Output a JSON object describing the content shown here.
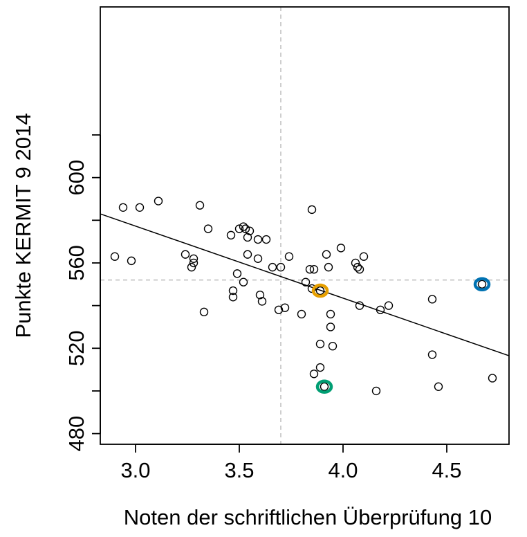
{
  "chart_data": {
    "type": "scatter",
    "xlabel": "Noten der schriftlichen Überprüfung 10",
    "ylabel": "Punkte KERMIT 9 2014",
    "xlim": [
      2.83,
      4.8
    ],
    "ylim": [
      475,
      680
    ],
    "x_ticks": [
      "3.0",
      "3.5",
      "4.0",
      "4.5"
    ],
    "x_tick_values": [
      3.0,
      3.5,
      4.0,
      4.5
    ],
    "y_ticks": [
      "480",
      "520",
      "560",
      "600"
    ],
    "y_tick_values": [
      480,
      520,
      560,
      600
    ],
    "grid": false,
    "reference_lines": {
      "x_mean": 3.7,
      "y_mean": 552
    },
    "regression_line": {
      "x": [
        2.83,
        4.8
      ],
      "y": [
        583,
        516.5
      ]
    },
    "points": [
      {
        "x": 2.9,
        "y": 563
      },
      {
        "x": 2.94,
        "y": 586
      },
      {
        "x": 2.98,
        "y": 561
      },
      {
        "x": 3.02,
        "y": 586
      },
      {
        "x": 3.11,
        "y": 589
      },
      {
        "x": 3.24,
        "y": 564
      },
      {
        "x": 3.28,
        "y": 562
      },
      {
        "x": 3.28,
        "y": 560
      },
      {
        "x": 3.27,
        "y": 558
      },
      {
        "x": 3.31,
        "y": 587
      },
      {
        "x": 3.33,
        "y": 537
      },
      {
        "x": 3.35,
        "y": 576
      },
      {
        "x": 3.46,
        "y": 573
      },
      {
        "x": 3.47,
        "y": 547
      },
      {
        "x": 3.47,
        "y": 544
      },
      {
        "x": 3.49,
        "y": 555
      },
      {
        "x": 3.5,
        "y": 576
      },
      {
        "x": 3.52,
        "y": 577
      },
      {
        "x": 3.53,
        "y": 576
      },
      {
        "x": 3.55,
        "y": 575
      },
      {
        "x": 3.54,
        "y": 572
      },
      {
        "x": 3.54,
        "y": 564
      },
      {
        "x": 3.52,
        "y": 551
      },
      {
        "x": 3.59,
        "y": 571
      },
      {
        "x": 3.59,
        "y": 562
      },
      {
        "x": 3.6,
        "y": 545
      },
      {
        "x": 3.61,
        "y": 542
      },
      {
        "x": 3.63,
        "y": 571
      },
      {
        "x": 3.66,
        "y": 558
      },
      {
        "x": 3.7,
        "y": 558
      },
      {
        "x": 3.69,
        "y": 538
      },
      {
        "x": 3.72,
        "y": 539
      },
      {
        "x": 3.74,
        "y": 563
      },
      {
        "x": 3.8,
        "y": 536
      },
      {
        "x": 3.82,
        "y": 551
      },
      {
        "x": 3.84,
        "y": 557
      },
      {
        "x": 3.86,
        "y": 557
      },
      {
        "x": 3.85,
        "y": 548
      },
      {
        "x": 3.85,
        "y": 585
      },
      {
        "x": 3.89,
        "y": 547
      },
      {
        "x": 3.89,
        "y": 522
      },
      {
        "x": 3.89,
        "y": 511
      },
      {
        "x": 3.92,
        "y": 564
      },
      {
        "x": 3.93,
        "y": 558
      },
      {
        "x": 3.94,
        "y": 536
      },
      {
        "x": 3.94,
        "y": 530
      },
      {
        "x": 3.95,
        "y": 521
      },
      {
        "x": 3.86,
        "y": 508
      },
      {
        "x": 3.91,
        "y": 502
      },
      {
        "x": 3.99,
        "y": 567
      },
      {
        "x": 4.06,
        "y": 560
      },
      {
        "x": 4.07,
        "y": 558
      },
      {
        "x": 4.08,
        "y": 557
      },
      {
        "x": 4.1,
        "y": 563
      },
      {
        "x": 4.08,
        "y": 540
      },
      {
        "x": 4.16,
        "y": 500
      },
      {
        "x": 4.18,
        "y": 538
      },
      {
        "x": 4.22,
        "y": 540
      },
      {
        "x": 4.43,
        "y": 543
      },
      {
        "x": 4.43,
        "y": 517
      },
      {
        "x": 4.46,
        "y": 502
      },
      {
        "x": 4.67,
        "y": 550
      },
      {
        "x": 4.72,
        "y": 506
      }
    ],
    "highlighted": [
      {
        "x": 3.89,
        "y": 547,
        "color": "#E69F00"
      },
      {
        "x": 3.91,
        "y": 502,
        "color": "#009E73"
      },
      {
        "x": 4.67,
        "y": 550,
        "color": "#0072B2"
      }
    ]
  }
}
